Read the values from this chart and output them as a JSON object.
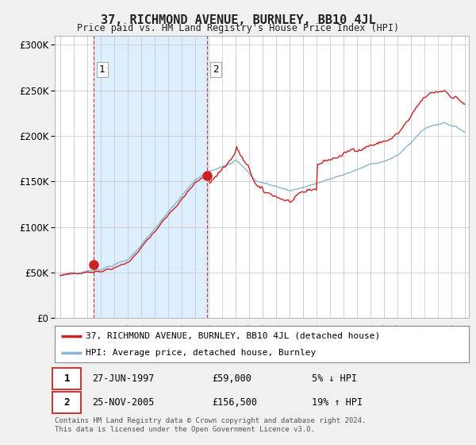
{
  "title": "37, RICHMOND AVENUE, BURNLEY, BB10 4JL",
  "subtitle": "Price paid vs. HM Land Registry's House Price Index (HPI)",
  "legend_line1": "37, RICHMOND AVENUE, BURNLEY, BB10 4JL (detached house)",
  "legend_line2": "HPI: Average price, detached house, Burnley",
  "footnote": "Contains HM Land Registry data © Crown copyright and database right 2024.\nThis data is licensed under the Open Government Licence v3.0.",
  "transaction1_date": "27-JUN-1997",
  "transaction1_price": "£59,000",
  "transaction1_hpi": "5% ↓ HPI",
  "transaction2_date": "25-NOV-2005",
  "transaction2_price": "£156,500",
  "transaction2_hpi": "19% ↑ HPI",
  "hpi_color": "#8ab4d4",
  "price_color": "#cc2222",
  "background_color": "#f0f0f0",
  "plot_bg_color": "#ffffff",
  "shade_color": "#ddeeff",
  "ylim": [
    0,
    310000
  ],
  "yticks": [
    0,
    50000,
    100000,
    150000,
    200000,
    250000,
    300000
  ],
  "transaction1_x": 1997.49,
  "transaction1_y": 59000,
  "transaction2_x": 2005.9,
  "transaction2_y": 156500,
  "xlim_left": 1994.6,
  "xlim_right": 2025.3
}
